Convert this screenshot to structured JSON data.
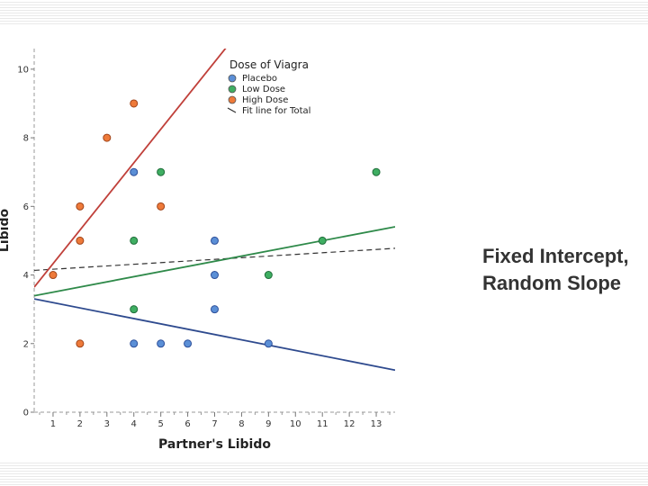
{
  "side_note": {
    "line1": "Fixed Intercept,",
    "line2": "Random Slope"
  },
  "chart_data": {
    "type": "scatter",
    "title": "",
    "xlabel": "Partner's Libido",
    "ylabel": "Libido",
    "xlim": [
      0.3,
      13.7
    ],
    "ylim": [
      0,
      10.6
    ],
    "x_ticks": [
      1,
      2,
      3,
      4,
      5,
      6,
      7,
      8,
      9,
      10,
      11,
      12,
      13
    ],
    "y_ticks": [
      0,
      2,
      4,
      6,
      8,
      10
    ],
    "grid": false,
    "legend": {
      "title": "Dose of Viagra",
      "placement": "top-right",
      "entries": [
        {
          "label": "Placebo",
          "kind": "point",
          "color": "#5b8fd6"
        },
        {
          "label": "Low Dose",
          "kind": "point",
          "color": "#3fae62"
        },
        {
          "label": "High Dose",
          "kind": "point",
          "color": "#ee7a3a"
        },
        {
          "label": "Fit line for Total",
          "kind": "line",
          "color": "#333333"
        }
      ]
    },
    "series": [
      {
        "name": "Placebo",
        "color": "#5b8fd6",
        "edge": "#2d4f9a",
        "points": [
          [
            4,
            7
          ],
          [
            4,
            2
          ],
          [
            5,
            2
          ],
          [
            6,
            2
          ],
          [
            7,
            5
          ],
          [
            7,
            4
          ],
          [
            7,
            3
          ],
          [
            9,
            2
          ]
        ],
        "fit": {
          "intercept": 3.35,
          "slope": -0.155,
          "color": "#2e4a8e"
        }
      },
      {
        "name": "Low Dose",
        "color": "#3fae62",
        "edge": "#1f6d3a",
        "points": [
          [
            4,
            5
          ],
          [
            4,
            3
          ],
          [
            5,
            7
          ],
          [
            9,
            4
          ],
          [
            11,
            5
          ],
          [
            13,
            7
          ]
        ],
        "fit": {
          "intercept": 3.35,
          "slope": 0.15,
          "color": "#2f8a4a"
        }
      },
      {
        "name": "High Dose",
        "color": "#ee7a3a",
        "edge": "#a0441a",
        "points": [
          [
            1,
            4
          ],
          [
            2,
            6
          ],
          [
            2,
            5
          ],
          [
            2,
            2
          ],
          [
            3,
            8
          ],
          [
            4,
            9
          ],
          [
            5,
            6
          ]
        ],
        "fit": {
          "intercept": 3.35,
          "slope": 0.98,
          "color": "#c0403a"
        }
      }
    ],
    "total_fit": {
      "intercept": 4.12,
      "slope": 0.048,
      "color": "#333333",
      "dashed": true
    }
  }
}
